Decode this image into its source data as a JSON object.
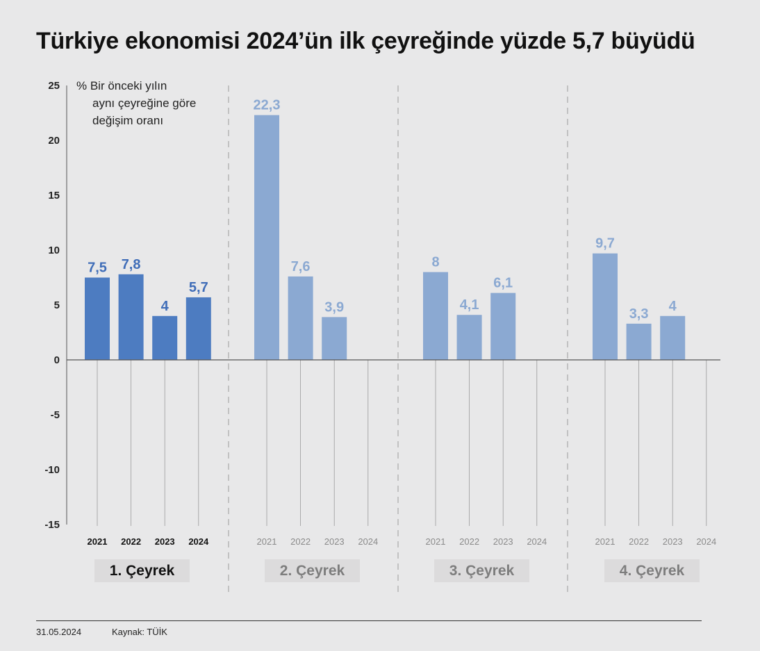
{
  "chart_data": {
    "type": "bar",
    "title": "Türkiye ekonomisi 2024’ün ilk çeyreğinde yüzde 5,7 büyüdü",
    "ylabel_lines": [
      "% Bir önceki yılın",
      "aynı çeyreğine göre",
      "değişim oranı"
    ],
    "ylim": [
      -15,
      25
    ],
    "yticks": [
      25,
      20,
      15,
      10,
      5,
      0,
      -5,
      -10,
      -15
    ],
    "grid": false,
    "colors": {
      "highlight": "#4d7cc1",
      "default": "#8ba9d2",
      "highlight_text": "#3f6db8",
      "muted_text": "#8a8a8a",
      "quarter_box_bg": "#dcdbdc"
    },
    "groups": [
      {
        "name": "1. Çeyrek",
        "highlight": true,
        "categories": [
          "2021",
          "2022",
          "2023",
          "2024"
        ],
        "values": [
          7.5,
          7.8,
          4,
          5.7
        ],
        "labels": [
          "7,5",
          "7,8",
          "4",
          "5,7"
        ]
      },
      {
        "name": "2. Çeyrek",
        "highlight": false,
        "categories": [
          "2021",
          "2022",
          "2023",
          "2024"
        ],
        "values": [
          22.3,
          7.6,
          3.9,
          null
        ],
        "labels": [
          "22,3",
          "7,6",
          "3,9",
          ""
        ]
      },
      {
        "name": "3. Çeyrek",
        "highlight": false,
        "categories": [
          "2021",
          "2022",
          "2023",
          "2024"
        ],
        "values": [
          8,
          4.1,
          6.1,
          null
        ],
        "labels": [
          "8",
          "4,1",
          "6,1",
          ""
        ]
      },
      {
        "name": "4. Çeyrek",
        "highlight": false,
        "categories": [
          "2021",
          "2022",
          "2023",
          "2024"
        ],
        "values": [
          9.7,
          3.3,
          4,
          null
        ],
        "labels": [
          "9,7",
          "3,3",
          "4",
          ""
        ]
      }
    ]
  },
  "footer": {
    "date": "31.05.2024",
    "source": "Kaynak: TÜİK"
  }
}
